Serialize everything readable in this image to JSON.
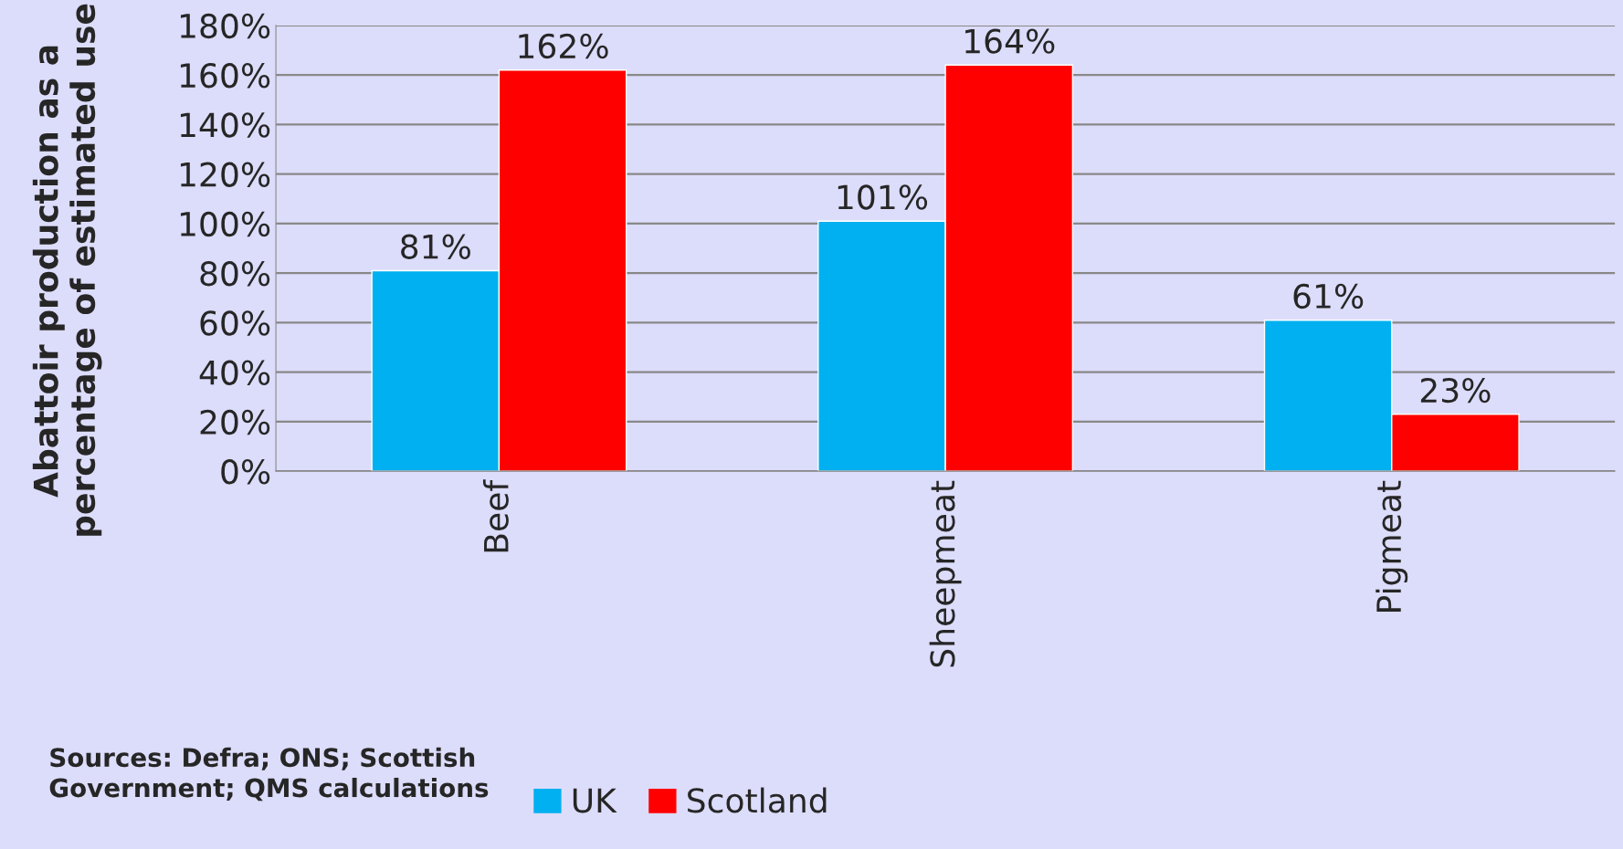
{
  "chart_data": {
    "type": "bar",
    "ylabel": "Abattoir production as a percentage of estimated use",
    "categories": [
      "Beef",
      "Sheepmeat",
      "Pigmeat"
    ],
    "series": [
      {
        "name": "UK",
        "color": "#00b0f0",
        "values": [
          81,
          101,
          61
        ],
        "value_labels": [
          "81%",
          "101%",
          "61%"
        ]
      },
      {
        "name": "Scotland",
        "color": "#ff0000",
        "values": [
          162,
          164,
          23
        ],
        "value_labels": [
          "162%",
          "164%",
          "23%"
        ]
      }
    ],
    "ylim": [
      0,
      180
    ],
    "yticks": [
      {
        "value": 0,
        "label": "0%"
      },
      {
        "value": 20,
        "label": "20%"
      },
      {
        "value": 40,
        "label": "40%"
      },
      {
        "value": 60,
        "label": "60%"
      },
      {
        "value": 80,
        "label": "80%"
      },
      {
        "value": 100,
        "label": "100%"
      },
      {
        "value": 120,
        "label": "120%"
      },
      {
        "value": 140,
        "label": "140%"
      },
      {
        "value": 160,
        "label": "160%"
      },
      {
        "value": 180,
        "label": "180%"
      }
    ],
    "grid": "y",
    "legend": "bottom",
    "annotations": [
      "Sources: Defra; ONS; Scottish Government; QMS calculations"
    ]
  }
}
